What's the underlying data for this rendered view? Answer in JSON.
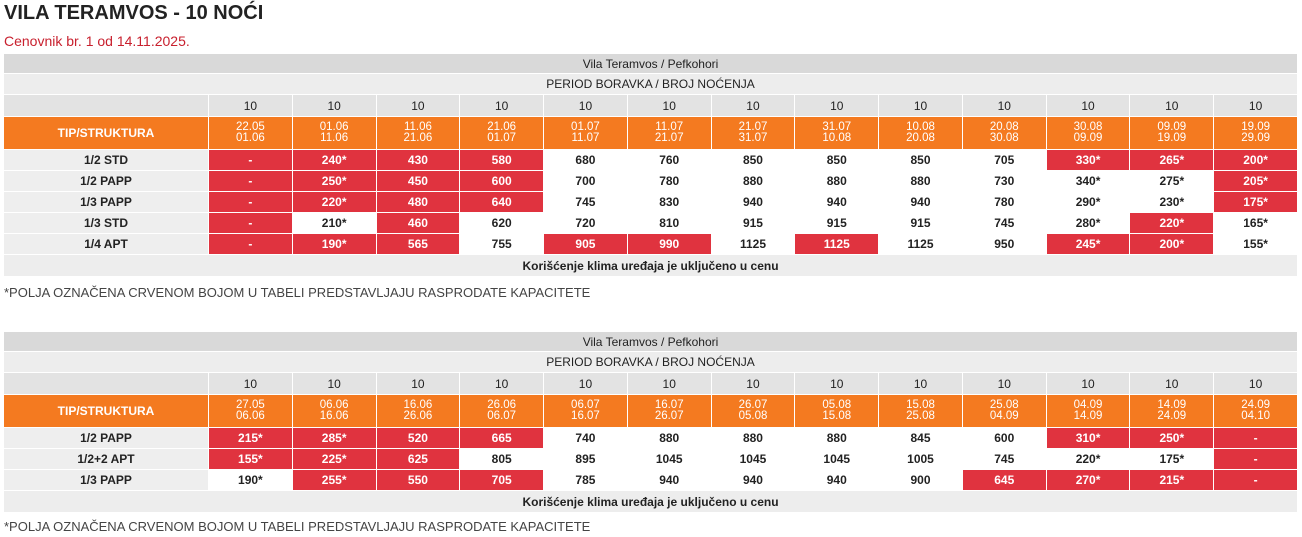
{
  "title": "VILA TERAMVOS - 10 NOĆI",
  "subtitle": "Cenovnik br. 1 od 14.11.2025.",
  "tables": [
    {
      "caption": "Vila Teramvos / Pefkohori",
      "period_header": "PERIOD BORAVKA / BROJ NOĆENJA",
      "nights": [
        "10",
        "10",
        "10",
        "10",
        "10",
        "10",
        "10",
        "10",
        "10",
        "10",
        "10",
        "10",
        "10"
      ],
      "type_label": "TIP/STRUKTURA",
      "periods": [
        [
          "22.05",
          "01.06"
        ],
        [
          "01.06",
          "11.06"
        ],
        [
          "11.06",
          "21.06"
        ],
        [
          "21.06",
          "01.07"
        ],
        [
          "01.07",
          "11.07"
        ],
        [
          "11.07",
          "21.07"
        ],
        [
          "21.07",
          "31.07"
        ],
        [
          "31.07",
          "10.08"
        ],
        [
          "10.08",
          "20.08"
        ],
        [
          "20.08",
          "30.08"
        ],
        [
          "30.08",
          "09.09"
        ],
        [
          "09.09",
          "19.09"
        ],
        [
          "19.09",
          "29.09"
        ]
      ],
      "rows": [
        {
          "label": "1/2 STD",
          "values": [
            "-",
            "240*",
            "430",
            "580",
            "680",
            "760",
            "850",
            "850",
            "850",
            "705",
            "330*",
            "265*",
            "200*"
          ],
          "sold_out": [
            true,
            true,
            true,
            true,
            false,
            false,
            false,
            false,
            false,
            false,
            true,
            true,
            true
          ]
        },
        {
          "label": "1/2 PAPP",
          "values": [
            "-",
            "250*",
            "450",
            "600",
            "700",
            "780",
            "880",
            "880",
            "880",
            "730",
            "340*",
            "275*",
            "205*"
          ],
          "sold_out": [
            true,
            true,
            true,
            true,
            false,
            false,
            false,
            false,
            false,
            false,
            false,
            false,
            true
          ]
        },
        {
          "label": "1/3 PAPP",
          "values": [
            "-",
            "220*",
            "480",
            "640",
            "745",
            "830",
            "940",
            "940",
            "940",
            "780",
            "290*",
            "230*",
            "175*"
          ],
          "sold_out": [
            true,
            true,
            true,
            true,
            false,
            false,
            false,
            false,
            false,
            false,
            false,
            false,
            true
          ]
        },
        {
          "label": "1/3 STD",
          "values": [
            "-",
            "210*",
            "460",
            "620",
            "720",
            "810",
            "915",
            "915",
            "915",
            "745",
            "280*",
            "220*",
            "165*"
          ],
          "sold_out": [
            true,
            false,
            true,
            false,
            false,
            false,
            false,
            false,
            false,
            false,
            false,
            true,
            false
          ]
        },
        {
          "label": "1/4 APT",
          "values": [
            "-",
            "190*",
            "565",
            "755",
            "905",
            "990",
            "1125",
            "1125",
            "1125",
            "950",
            "245*",
            "200*",
            "155*"
          ],
          "sold_out": [
            true,
            true,
            true,
            false,
            true,
            true,
            false,
            true,
            false,
            false,
            true,
            true,
            false
          ]
        }
      ],
      "footer": "Korišćenje klima uređaja je uključeno u cenu",
      "note": "*POLJA OZNAČENA CRVENOM BOJOM U TABELI PREDSTAVLJAJU RASPRODATE KAPACITETE"
    },
    {
      "caption": "Vila Teramvos / Pefkohori",
      "period_header": "PERIOD BORAVKA / BROJ NOĆENJA",
      "nights": [
        "10",
        "10",
        "10",
        "10",
        "10",
        "10",
        "10",
        "10",
        "10",
        "10",
        "10",
        "10",
        "10"
      ],
      "type_label": "TIP/STRUKTURA",
      "periods": [
        [
          "27.05",
          "06.06"
        ],
        [
          "06.06",
          "16.06"
        ],
        [
          "16.06",
          "26.06"
        ],
        [
          "26.06",
          "06.07"
        ],
        [
          "06.07",
          "16.07"
        ],
        [
          "16.07",
          "26.07"
        ],
        [
          "26.07",
          "05.08"
        ],
        [
          "05.08",
          "15.08"
        ],
        [
          "15.08",
          "25.08"
        ],
        [
          "25.08",
          "04.09"
        ],
        [
          "04.09",
          "14.09"
        ],
        [
          "14.09",
          "24.09"
        ],
        [
          "24.09",
          "04.10"
        ]
      ],
      "rows": [
        {
          "label": "1/2 PAPP",
          "values": [
            "215*",
            "285*",
            "520",
            "665",
            "740",
            "880",
            "880",
            "880",
            "845",
            "600",
            "310*",
            "250*",
            "-"
          ],
          "sold_out": [
            true,
            true,
            true,
            true,
            false,
            false,
            false,
            false,
            false,
            false,
            true,
            true,
            true
          ]
        },
        {
          "label": "1/2+2 APT",
          "values": [
            "155*",
            "225*",
            "625",
            "805",
            "895",
            "1045",
            "1045",
            "1045",
            "1005",
            "745",
            "220*",
            "175*",
            "-"
          ],
          "sold_out": [
            true,
            true,
            true,
            false,
            false,
            false,
            false,
            false,
            false,
            false,
            false,
            false,
            true
          ]
        },
        {
          "label": "1/3 PAPP",
          "values": [
            "190*",
            "255*",
            "550",
            "705",
            "785",
            "940",
            "940",
            "940",
            "900",
            "645",
            "270*",
            "215*",
            "-"
          ],
          "sold_out": [
            false,
            true,
            true,
            true,
            false,
            false,
            false,
            false,
            false,
            true,
            true,
            true,
            true
          ]
        }
      ],
      "footer": "Korišćenje klima uređaja je uključeno u cenu",
      "note": "*POLJA OZNAČENA CRVENOM BOJOM U TABELI PREDSTAVLJAJU RASPRODATE KAPACITETE"
    }
  ]
}
